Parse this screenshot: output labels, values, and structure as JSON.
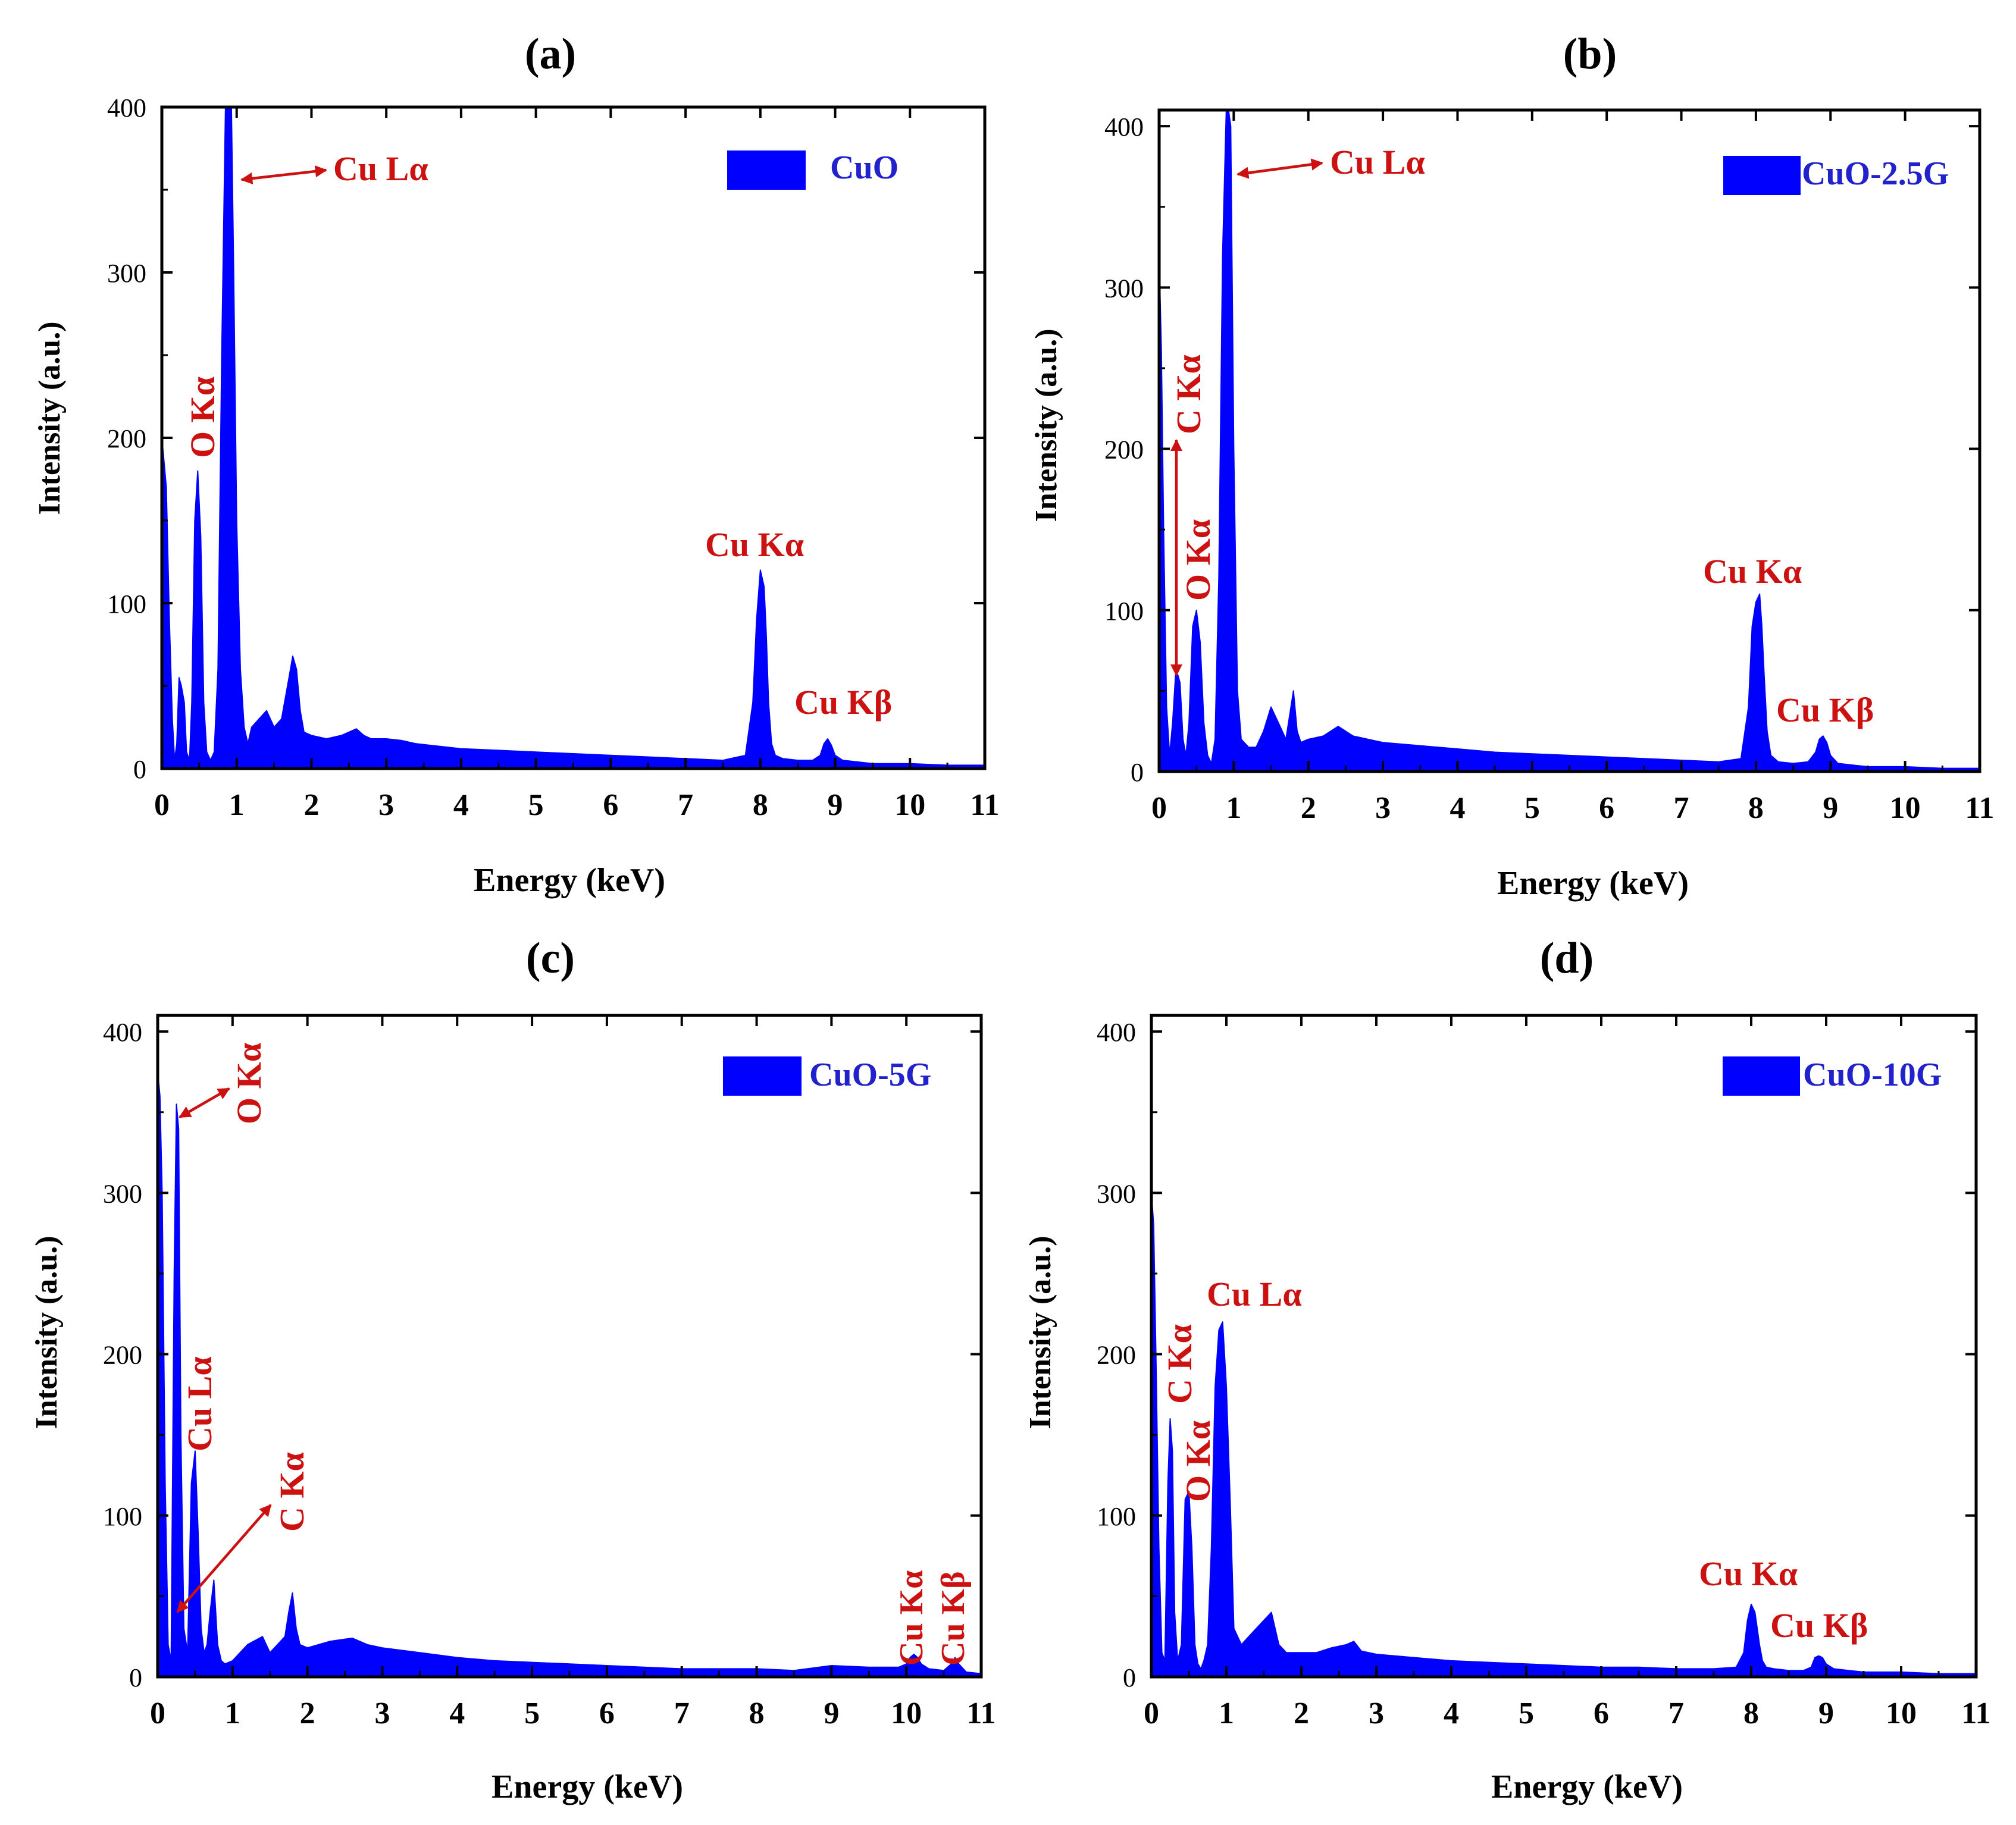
{
  "figure": {
    "x_ticks": [
      "0",
      "1",
      "2",
      "3",
      "4",
      "5",
      "6",
      "7",
      "8",
      "9",
      "10",
      "11"
    ],
    "y_ticks": [
      "0",
      "100",
      "200",
      "300",
      "400"
    ]
  },
  "chart_data": [
    {
      "type": "area",
      "panel_label": "(a)",
      "xlabel": "Energy (keV)",
      "ylabel": "Intensity (a.u.)",
      "xlim": [
        0,
        11
      ],
      "ylim": [
        0,
        400
      ],
      "series": [
        {
          "name": "CuO",
          "color": "#0000ff",
          "x": [
            0,
            0.03,
            0.06,
            0.1,
            0.14,
            0.17,
            0.2,
            0.23,
            0.26,
            0.3,
            0.33,
            0.37,
            0.4,
            0.44,
            0.48,
            0.52,
            0.56,
            0.6,
            0.65,
            0.7,
            0.75,
            0.8,
            0.85,
            0.9,
            0.93,
            0.96,
            1.0,
            1.05,
            1.1,
            1.15,
            1.2,
            1.3,
            1.4,
            1.5,
            1.6,
            1.7,
            1.75,
            1.8,
            1.85,
            1.9,
            2.0,
            2.2,
            2.4,
            2.6,
            2.7,
            2.8,
            3.0,
            3.2,
            3.4,
            3.6,
            3.8,
            4.0,
            4.5,
            5.0,
            5.5,
            6.0,
            6.5,
            7.0,
            7.5,
            7.8,
            7.9,
            7.95,
            8.0,
            8.05,
            8.08,
            8.11,
            8.15,
            8.2,
            8.3,
            8.5,
            8.7,
            8.8,
            8.85,
            8.9,
            8.95,
            9.0,
            9.1,
            9.3,
            9.5,
            10.0,
            10.5,
            11.0
          ],
          "y": [
            200,
            185,
            170,
            90,
            30,
            5,
            15,
            55,
            50,
            40,
            10,
            5,
            40,
            150,
            180,
            140,
            40,
            10,
            5,
            10,
            60,
            250,
            405,
            440,
            400,
            300,
            150,
            60,
            25,
            15,
            25,
            30,
            35,
            25,
            30,
            55,
            68,
            60,
            35,
            22,
            20,
            18,
            20,
            24,
            20,
            18,
            18,
            17,
            15,
            14,
            13,
            12,
            11,
            10,
            9,
            8,
            7,
            6,
            5,
            8,
            40,
            90,
            120,
            110,
            80,
            40,
            15,
            8,
            6,
            5,
            5,
            8,
            15,
            18,
            14,
            8,
            5,
            4,
            3,
            3,
            2,
            2
          ]
        }
      ],
      "legend": {
        "label": "CuO",
        "position": "top-right"
      },
      "annotations": [
        {
          "text": "Cu Lα",
          "x": 1.0,
          "y": 370
        },
        {
          "text": "O Kα",
          "x": 0.55,
          "y": 200
        },
        {
          "text": "Cu Kα",
          "x": 8.05,
          "y": 140
        },
        {
          "text": "Cu Kβ",
          "x": 9.0,
          "y": 40
        }
      ]
    },
    {
      "type": "area",
      "panel_label": "(b)",
      "xlabel": "Energy (keV)",
      "ylabel": "Intensity (a.u.)",
      "xlim": [
        0,
        11
      ],
      "ylim": [
        0,
        410
      ],
      "series": [
        {
          "name": "CuO-2.5G",
          "color": "#0000ff",
          "x": [
            0,
            0.03,
            0.06,
            0.1,
            0.14,
            0.18,
            0.22,
            0.25,
            0.28,
            0.32,
            0.36,
            0.4,
            0.45,
            0.5,
            0.55,
            0.6,
            0.65,
            0.7,
            0.75,
            0.8,
            0.85,
            0.9,
            0.93,
            0.96,
            1.0,
            1.05,
            1.1,
            1.2,
            1.3,
            1.4,
            1.5,
            1.6,
            1.7,
            1.8,
            1.85,
            1.9,
            2.0,
            2.2,
            2.4,
            2.6,
            2.8,
            3.0,
            3.5,
            4.0,
            4.5,
            5.0,
            5.5,
            6.0,
            6.5,
            7.0,
            7.5,
            7.8,
            7.9,
            7.95,
            8.0,
            8.05,
            8.08,
            8.11,
            8.15,
            8.2,
            8.3,
            8.5,
            8.7,
            8.8,
            8.85,
            8.9,
            8.95,
            9.0,
            9.1,
            9.3,
            9.5,
            10.0,
            10.5,
            11.0
          ],
          "y": [
            320,
            260,
            150,
            40,
            10,
            30,
            60,
            60,
            55,
            20,
            10,
            30,
            90,
            100,
            80,
            30,
            10,
            5,
            20,
            120,
            320,
            430,
            440,
            400,
            200,
            50,
            20,
            15,
            15,
            25,
            40,
            30,
            20,
            50,
            25,
            18,
            20,
            22,
            28,
            22,
            20,
            18,
            16,
            14,
            12,
            11,
            10,
            9,
            8,
            7,
            6,
            8,
            40,
            90,
            105,
            110,
            90,
            60,
            25,
            10,
            6,
            5,
            6,
            12,
            20,
            22,
            18,
            10,
            5,
            4,
            3,
            3,
            2,
            2
          ]
        }
      ],
      "legend": {
        "label": "CuO-2.5G",
        "position": "top-right"
      },
      "annotations": [
        {
          "text": "Cu Lα",
          "x": 1.0,
          "y": 370
        },
        {
          "text": "C Kα",
          "x": 0.35,
          "y": 250
        },
        {
          "text": "O Kα",
          "x": 0.5,
          "y": 130
        },
        {
          "text": "Cu Kα",
          "x": 8.0,
          "y": 125
        },
        {
          "text": "Cu Kβ",
          "x": 9.0,
          "y": 35
        }
      ]
    },
    {
      "type": "area",
      "panel_label": "(c)",
      "xlabel": "Energy (keV)",
      "ylabel": "Intensity (a.u.)",
      "xlim": [
        0,
        11
      ],
      "ylim": [
        0,
        410
      ],
      "series": [
        {
          "name": "CuO-5G",
          "color": "#0000ff",
          "x": [
            0,
            0.03,
            0.06,
            0.1,
            0.14,
            0.18,
            0.22,
            0.25,
            0.28,
            0.31,
            0.35,
            0.4,
            0.45,
            0.5,
            0.54,
            0.58,
            0.62,
            0.66,
            0.7,
            0.75,
            0.8,
            0.85,
            0.9,
            1.0,
            1.2,
            1.4,
            1.5,
            1.6,
            1.7,
            1.75,
            1.8,
            1.85,
            1.9,
            2.0,
            2.3,
            2.6,
            2.8,
            3.0,
            3.5,
            4.0,
            4.5,
            5.0,
            5.5,
            6.0,
            6.5,
            7.0,
            7.5,
            8.0,
            8.5,
            9.0,
            9.5,
            9.9,
            10.0,
            10.05,
            10.1,
            10.15,
            10.2,
            10.3,
            10.5,
            10.6,
            10.65,
            10.7,
            10.8,
            11.0
          ],
          "y": [
            375,
            360,
            300,
            120,
            20,
            10,
            250,
            355,
            340,
            150,
            30,
            15,
            120,
            140,
            90,
            30,
            15,
            20,
            40,
            60,
            20,
            10,
            8,
            10,
            20,
            25,
            15,
            20,
            25,
            40,
            52,
            30,
            20,
            18,
            22,
            24,
            20,
            18,
            15,
            12,
            10,
            9,
            8,
            7,
            6,
            5,
            5,
            5,
            4,
            7,
            6,
            6,
            8,
            12,
            14,
            12,
            8,
            5,
            4,
            8,
            12,
            8,
            3,
            2
          ]
        }
      ],
      "legend": {
        "label": "CuO-5G",
        "position": "top-right"
      },
      "annotations": [
        {
          "text": "O Kα",
          "x": 1.0,
          "y": 370
        },
        {
          "text": "Cu Lα",
          "x": 0.55,
          "y": 170
        },
        {
          "text": "C Kα",
          "x": 1.55,
          "y": 100
        },
        {
          "text": "Cu Kα",
          "x": 10.15,
          "y": 50
        },
        {
          "text": "Cu Kβ",
          "x": 10.65,
          "y": 50
        }
      ]
    },
    {
      "type": "area",
      "panel_label": "(d)",
      "xlabel": "Energy (keV)",
      "ylabel": "Intensity (a.u.)",
      "xlim": [
        0,
        11
      ],
      "ylim": [
        0,
        410
      ],
      "series": [
        {
          "name": "CuO-10G",
          "color": "#0000ff",
          "x": [
            0,
            0.03,
            0.06,
            0.1,
            0.14,
            0.18,
            0.22,
            0.25,
            0.28,
            0.31,
            0.35,
            0.4,
            0.45,
            0.5,
            0.54,
            0.58,
            0.62,
            0.66,
            0.7,
            0.75,
            0.8,
            0.85,
            0.9,
            0.95,
            1.0,
            1.05,
            1.1,
            1.2,
            1.3,
            1.4,
            1.5,
            1.6,
            1.7,
            1.8,
            2.0,
            2.2,
            2.4,
            2.6,
            2.7,
            2.8,
            3.0,
            3.5,
            4.0,
            4.5,
            5.0,
            5.5,
            6.0,
            6.5,
            7.0,
            7.5,
            7.8,
            7.9,
            7.95,
            8.0,
            8.05,
            8.08,
            8.11,
            8.15,
            8.2,
            8.3,
            8.5,
            8.7,
            8.8,
            8.85,
            8.9,
            8.95,
            9.0,
            9.1,
            9.3,
            9.5,
            10.0,
            10.5,
            11.0
          ],
          "y": [
            300,
            280,
            200,
            80,
            15,
            10,
            120,
            160,
            140,
            40,
            10,
            20,
            110,
            115,
            80,
            20,
            8,
            5,
            10,
            20,
            80,
            180,
            215,
            220,
            180,
            110,
            30,
            20,
            25,
            30,
            35,
            40,
            20,
            15,
            15,
            15,
            18,
            20,
            22,
            16,
            14,
            12,
            10,
            9,
            8,
            7,
            6,
            6,
            5,
            5,
            6,
            15,
            35,
            45,
            40,
            30,
            20,
            10,
            6,
            5,
            4,
            4,
            6,
            12,
            13,
            12,
            8,
            5,
            4,
            3,
            3,
            2,
            2
          ]
        }
      ],
      "legend": {
        "label": "CuO-10G",
        "position": "top-right"
      },
      "annotations": [
        {
          "text": "Cu Lα",
          "x": 1.4,
          "y": 230
        },
        {
          "text": "C Kα",
          "x": 0.35,
          "y": 210
        },
        {
          "text": "O Kα",
          "x": 0.55,
          "y": 130
        },
        {
          "text": "Cu Kα",
          "x": 8.0,
          "y": 60
        },
        {
          "text": "Cu Kβ",
          "x": 9.0,
          "y": 30
        }
      ]
    }
  ]
}
